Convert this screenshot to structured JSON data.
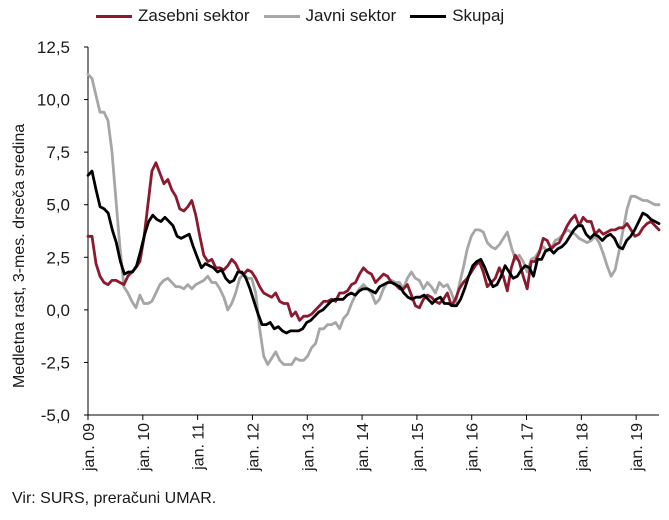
{
  "chart_data": {
    "type": "line",
    "ylabel": "Medletna rast, 3-mes. drseča sredina",
    "ylim": [
      -5,
      12.5
    ],
    "yticks": [
      "12,5",
      "10,0",
      "7,5",
      "5,0",
      "2,5",
      "0,0",
      "-2,5",
      "-5,0"
    ],
    "ytick_values": [
      12.5,
      10,
      7.5,
      5,
      2.5,
      0,
      -2.5,
      -5
    ],
    "x_ticks": [
      "jan. 09",
      "jan. 10",
      "jan. 11",
      "jan. 12",
      "jan. 13",
      "jan. 14",
      "jan. 15",
      "jan. 16",
      "jan. 17",
      "jan. 18",
      "jan. 19"
    ],
    "x_start": "2009-01",
    "x_end": "2019-06",
    "legend_position": "top",
    "grid": false,
    "series": [
      {
        "name": "Zasebni sektor",
        "color": "#8b1a2e",
        "values": [
          3.5,
          3.5,
          2.2,
          1.6,
          1.3,
          1.2,
          1.4,
          1.4,
          1.3,
          1.2,
          1.6,
          1.8,
          2.0,
          2.3,
          3.4,
          5.0,
          6.6,
          7.0,
          6.5,
          6.0,
          6.2,
          5.7,
          5.4,
          4.8,
          4.7,
          4.9,
          5.2,
          4.5,
          3.5,
          2.6,
          2.3,
          2.4,
          2.0,
          2.0,
          1.9,
          2.1,
          2.4,
          2.2,
          1.8,
          1.7,
          1.9,
          1.8,
          1.5,
          1.1,
          0.8,
          0.7,
          0.6,
          0.8,
          0.4,
          0.3,
          0.3,
          -0.3,
          -0.1,
          -0.5,
          -0.3,
          -0.3,
          -0.2,
          0.0,
          0.2,
          0.4,
          0.4,
          0.5,
          0.4,
          0.8,
          0.8,
          0.9,
          1.2,
          1.3,
          1.7,
          2.0,
          1.8,
          1.7,
          1.3,
          1.5,
          1.7,
          1.6,
          1.3,
          1.2,
          1.0,
          1.0,
          1.2,
          0.7,
          0.2,
          0.1,
          0.5,
          0.7,
          0.6,
          0.4,
          0.3,
          0.5,
          0.8,
          0.2,
          0.5,
          1.0,
          1.3,
          1.5,
          1.8,
          2.1,
          2.3,
          1.8,
          1.1,
          1.3,
          1.5,
          2.0,
          1.6,
          0.9,
          2.0,
          2.6,
          2.3,
          1.6,
          1.0,
          2.3,
          2.3,
          2.7,
          3.4,
          3.3,
          2.9,
          3.1,
          3.2,
          3.6,
          4.0,
          4.3,
          4.5,
          4.0,
          4.4,
          4.2,
          4.2,
          3.6,
          3.8,
          3.6,
          3.7,
          3.8,
          3.8,
          3.9,
          3.9,
          4.1,
          3.8,
          3.5,
          3.6,
          3.9,
          4.1,
          4.2,
          4.0,
          3.8
        ]
      },
      {
        "name": "Javni sektor",
        "color": "#a6a6a6",
        "values": [
          11.2,
          11.0,
          10.2,
          9.4,
          9.4,
          9.0,
          7.5,
          5.2,
          3.0,
          1.1,
          0.8,
          0.4,
          0.1,
          0.7,
          0.3,
          0.3,
          0.4,
          0.8,
          1.2,
          1.4,
          1.5,
          1.3,
          1.1,
          1.1,
          1.0,
          1.2,
          1.0,
          1.2,
          1.3,
          1.4,
          1.6,
          1.3,
          1.3,
          1.0,
          0.6,
          0.0,
          0.3,
          0.8,
          1.5,
          1.7,
          1.5,
          1.5,
          0.8,
          -0.9,
          -2.2,
          -2.6,
          -2.3,
          -2.0,
          -2.4,
          -2.6,
          -2.6,
          -2.6,
          -2.3,
          -2.4,
          -2.4,
          -2.2,
          -1.8,
          -1.6,
          -0.9,
          -0.9,
          -0.7,
          -0.7,
          -0.6,
          -0.9,
          -0.4,
          -0.2,
          0.3,
          0.7,
          1.0,
          1.2,
          1.0,
          0.8,
          0.3,
          0.5,
          1.0,
          1.3,
          1.4,
          1.3,
          1.3,
          1.0,
          1.5,
          1.8,
          1.5,
          1.4,
          1.0,
          1.3,
          1.1,
          0.8,
          1.3,
          1.1,
          1.2,
          0.8,
          0.3,
          1.2,
          2.0,
          2.9,
          3.5,
          3.8,
          3.8,
          3.7,
          3.2,
          3.0,
          2.9,
          3.1,
          3.4,
          3.7,
          3.0,
          2.4,
          2.6,
          2.3,
          1.8,
          2.4,
          2.5,
          2.8,
          3.0,
          2.8,
          2.9,
          3.3,
          3.4,
          3.6,
          3.8,
          3.7,
          3.6,
          3.4,
          3.3,
          3.2,
          3.3,
          3.5,
          3.2,
          2.7,
          2.1,
          1.6,
          1.9,
          2.8,
          3.8,
          4.8,
          5.4,
          5.4,
          5.3,
          5.2,
          5.2,
          5.1,
          5.0,
          5.0
        ]
      },
      {
        "name": "Skupaj",
        "color": "#000000",
        "values": [
          6.4,
          6.6,
          5.7,
          4.9,
          4.8,
          4.6,
          3.8,
          3.2,
          2.3,
          1.7,
          1.8,
          1.8,
          2.1,
          2.8,
          3.6,
          4.2,
          4.5,
          4.3,
          4.2,
          4.4,
          4.2,
          4.0,
          3.5,
          3.4,
          3.5,
          3.6,
          3.0,
          2.5,
          2.0,
          2.2,
          2.1,
          2.0,
          1.8,
          1.9,
          1.5,
          1.3,
          1.4,
          1.8,
          1.8,
          1.5,
          1.0,
          0.4,
          -0.2,
          -0.7,
          -0.7,
          -0.6,
          -0.9,
          -0.8,
          -1.0,
          -1.1,
          -1.0,
          -1.0,
          -1.0,
          -0.9,
          -0.6,
          -0.5,
          -0.3,
          -0.1,
          0.0,
          0.2,
          0.4,
          0.5,
          0.5,
          0.5,
          0.7,
          0.8,
          0.7,
          0.9,
          1.0,
          1.0,
          0.9,
          0.8,
          1.1,
          1.2,
          1.3,
          1.3,
          1.2,
          1.1,
          0.8,
          0.6,
          0.5,
          0.6,
          0.6,
          0.7,
          0.5,
          0.3,
          0.5,
          0.6,
          0.3,
          0.3,
          0.2,
          0.2,
          0.5,
          1.0,
          1.6,
          2.1,
          2.3,
          2.4,
          2.0,
          1.5,
          1.1,
          1.2,
          1.6,
          2.1,
          1.8,
          1.5,
          1.6,
          1.9,
          2.1,
          2.0,
          1.6,
          2.4,
          2.4,
          2.8,
          2.9,
          2.7,
          2.9,
          3.0,
          3.2,
          3.5,
          3.8,
          4.0,
          4.0,
          3.6,
          3.4,
          3.6,
          3.5,
          3.3,
          3.5,
          3.6,
          3.4,
          3.0,
          2.9,
          3.3,
          3.5,
          3.8,
          4.2,
          4.6,
          4.5,
          4.3,
          4.2,
          4.1
        ]
      }
    ]
  },
  "source": "Vir: SURS, preračuni UMAR."
}
